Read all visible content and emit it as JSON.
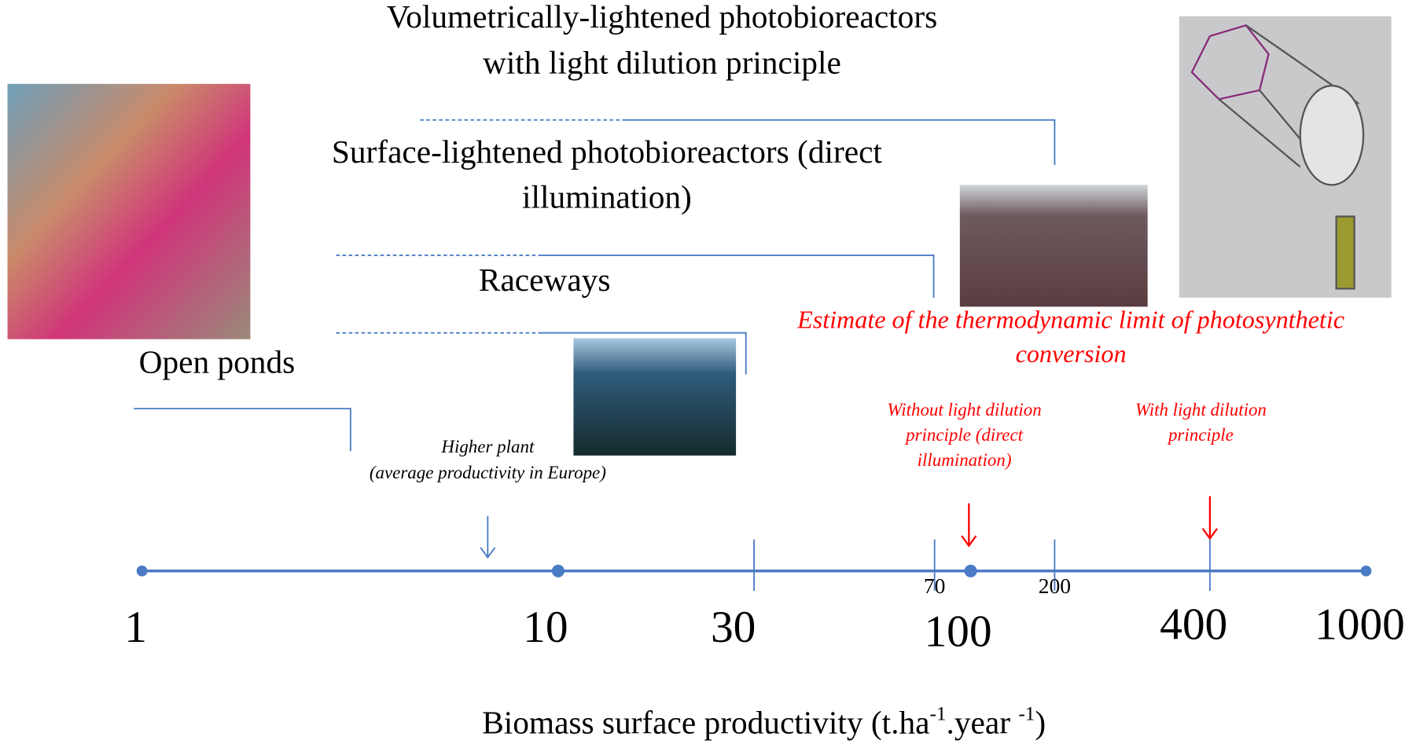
{
  "title": [
    "Volumetrically-lightened photobioreactors",
    "with light dilution principle"
  ],
  "tiers": [
    {
      "label": [
        "Surface-lightened photobioreactors (direct",
        "illumination)"
      ]
    },
    {
      "label": [
        "Raceways"
      ]
    },
    {
      "label": [
        "Open ponds"
      ]
    }
  ],
  "higher_plant": [
    "Higher plant",
    "(average productivity in Europe)"
  ],
  "limit": {
    "title": [
      "Estimate of the thermodynamic limit of photosynthetic",
      "conversion"
    ],
    "without": [
      "Without light dilution",
      "principle (direct",
      "illumination)"
    ],
    "with": [
      "With light dilution",
      "principle"
    ]
  },
  "axis": {
    "ticks": [
      "1",
      "10",
      "30",
      "100",
      "400",
      "1000"
    ],
    "minor_ticks": [
      "70",
      "200"
    ],
    "label": {
      "text": "Biomass surface productivity (t.ha",
      "sup1": "-1",
      "mid": ".year ",
      "sup2": "-1",
      "end": ")"
    }
  }
}
